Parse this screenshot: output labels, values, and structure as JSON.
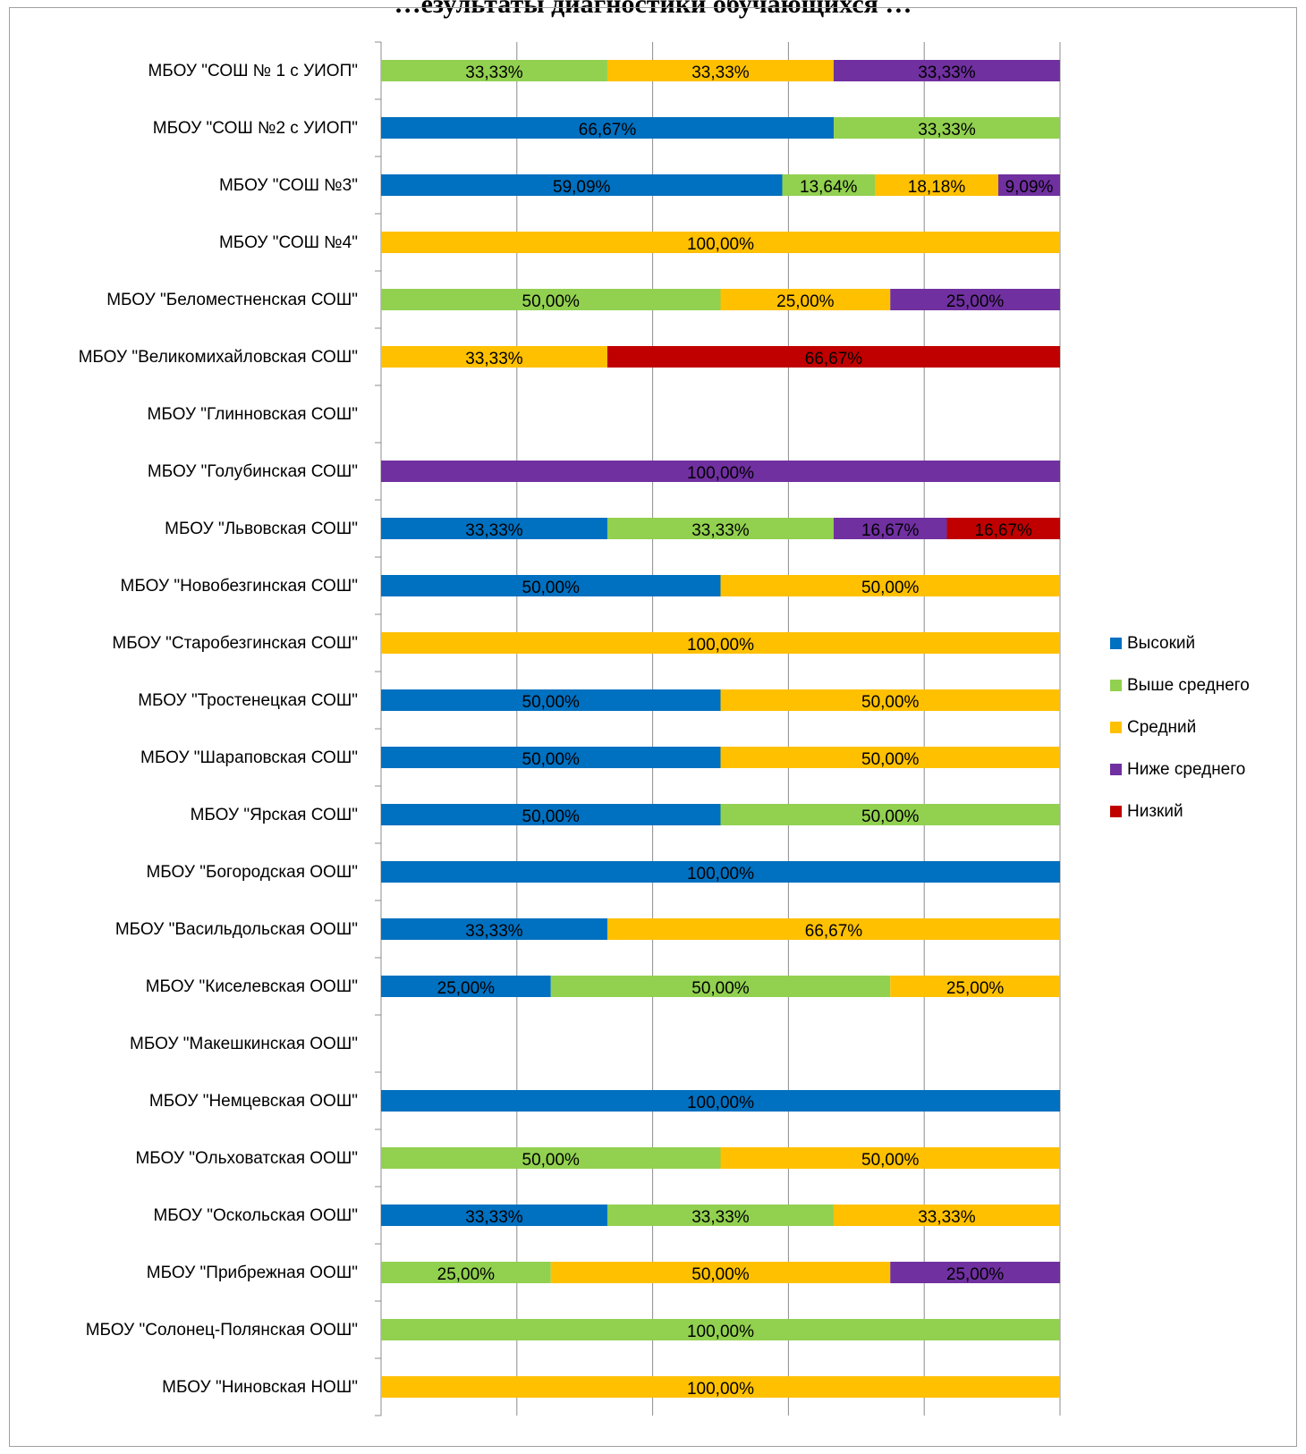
{
  "title": "…езультаты диагностики обучающихся …",
  "chart_data": {
    "type": "bar",
    "orientation": "horizontal",
    "stacked": "percent",
    "grid": true,
    "legend_position": "right",
    "categories": [
      "МБОУ \"СОШ № 1 с УИОП\"",
      "МБОУ \"СОШ №2 с УИОП\"",
      "МБОУ \"СОШ №3\"",
      "МБОУ \"СОШ  №4\"",
      "МБОУ \"Беломестненская СОШ\"",
      "МБОУ \"Великомихайловская  СОШ\"",
      "МБОУ \"Глинновская  СОШ\"",
      "МБОУ \"Голубинская СОШ\"",
      "МБОУ \"Львовская  СОШ\"",
      "МБОУ \"Новобезгинская СОШ\"",
      "МБОУ \"Старобезгинская СОШ\"",
      "МБОУ \"Тростенецкая  СОШ\"",
      "МБОУ \"Шараповская  СОШ\"",
      "МБОУ \"Ярская  СОШ\"",
      "МБОУ \"Богородская  ООШ\"",
      "МБОУ \"Васильдольская  ООШ\"",
      "МБОУ \"Киселевская ООШ\"",
      "МБОУ \"Макешкинская  ООШ\"",
      "МБОУ \"Немцевская  ООШ\"",
      "МБОУ \"Ольховатская  ООШ\"",
      "МБОУ \"Оскольская ООШ\"",
      "МБОУ \"Прибрежная  ООШ\"",
      "МБОУ \"Солонец-Полянская  ООШ\"",
      "МБОУ \"Ниновская  НОШ\""
    ],
    "series": [
      {
        "name": "Высокий",
        "color": "#0070C0",
        "values": [
          0,
          66.67,
          59.09,
          0,
          0,
          0,
          0,
          0,
          33.33,
          50,
          0,
          50,
          50,
          50,
          100,
          33.33,
          25,
          0,
          100,
          0,
          33.33,
          0,
          0,
          0
        ]
      },
      {
        "name": "Выше среднего",
        "color": "#92D050",
        "values": [
          33.33,
          33.33,
          13.64,
          0,
          50,
          0,
          0,
          0,
          33.33,
          0,
          0,
          0,
          0,
          50,
          0,
          0,
          50,
          0,
          0,
          50,
          33.33,
          25,
          100,
          0
        ]
      },
      {
        "name": "Средний",
        "color": "#FFC000",
        "values": [
          33.33,
          0,
          18.18,
          100,
          25,
          33.33,
          0,
          0,
          0,
          50,
          100,
          50,
          50,
          0,
          0,
          66.67,
          25,
          0,
          0,
          50,
          33.33,
          50,
          0,
          100
        ]
      },
      {
        "name": "Ниже среднего",
        "color": "#7030A0",
        "values": [
          33.33,
          0,
          9.09,
          0,
          25,
          0,
          0,
          100,
          16.67,
          0,
          0,
          0,
          0,
          0,
          0,
          0,
          0,
          0,
          0,
          0,
          0,
          25,
          0,
          0
        ]
      },
      {
        "name": "Низкий",
        "color": "#C00000",
        "values": [
          0,
          0,
          0,
          0,
          0,
          66.67,
          0,
          0,
          16.67,
          0,
          0,
          0,
          0,
          0,
          0,
          0,
          0,
          0,
          0,
          0,
          0,
          0,
          0,
          0
        ]
      }
    ],
    "xlim": [
      0,
      100
    ]
  }
}
